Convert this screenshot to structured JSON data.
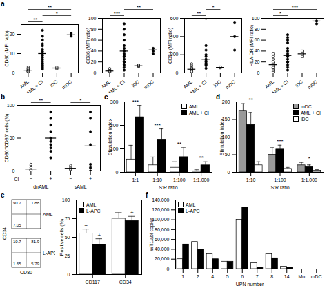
{
  "chart_data": [
    {
      "panel": "a",
      "type": "dot",
      "y_label": "CD80 (MFI ratio)",
      "categories": [
        "AML",
        "AML + CI",
        "iDC",
        "mDC"
      ],
      "marker": [
        "circle-open",
        "circle",
        "square-open",
        "circle"
      ],
      "points": [
        [
          0.5,
          1,
          1.5,
          2,
          0.8,
          1.2,
          2.5,
          3,
          1,
          0.6,
          1.8,
          2.2,
          0.7,
          1.4
        ],
        [
          2,
          3,
          4,
          5,
          6,
          7,
          8,
          9,
          10,
          11,
          12,
          14,
          15,
          17,
          19,
          22
        ],
        [
          2,
          2.5,
          3
        ],
        [
          19,
          19.5,
          20.5
        ]
      ],
      "means": [
        1.4,
        10,
        2.5,
        19.7
      ],
      "ylim": [
        0,
        25
      ],
      "yticks": [
        0,
        10,
        20
      ],
      "significance": [
        {
          "between": [
            "AML",
            "AML + CI"
          ],
          "text": "**"
        },
        {
          "between": [
            "AML + CI",
            "mDC"
          ],
          "text": "*"
        },
        {
          "between": [
            "AML",
            "mDC"
          ],
          "text": "**"
        }
      ]
    },
    {
      "type": "dot",
      "y_label": "CD86 (MFI ratio)",
      "categories": [
        "AML",
        "AML + CI",
        "iDC",
        "mDC"
      ],
      "marker": [
        "circle-open",
        "circle",
        "square-open",
        "circle"
      ],
      "points": [
        [
          1,
          2,
          3,
          4,
          5,
          3,
          2,
          6,
          8,
          4,
          2,
          1,
          3
        ],
        [
          5,
          10,
          15,
          20,
          25,
          30,
          35,
          40,
          45,
          50,
          60,
          70,
          80,
          90,
          20,
          30
        ],
        [
          12,
          13,
          14
        ],
        [
          35,
          45,
          40
        ]
      ],
      "means": [
        3.5,
        40,
        13,
        42
      ],
      "ylim": [
        0,
        100
      ],
      "yticks": [
        0,
        20,
        40,
        60,
        80,
        100
      ],
      "significance": [
        {
          "between": [
            "AML",
            "AML + CI"
          ],
          "text": "***"
        },
        {
          "between": [
            "AML + CI",
            "mDC"
          ],
          "text": "**"
        }
      ]
    },
    {
      "type": "dot",
      "y_label": "CD54 (MFI ratio)",
      "categories": [
        "AML",
        "AML + CI",
        "iDC",
        "mDC"
      ],
      "marker": [
        "circle-open",
        "circle",
        "square-open",
        "circle"
      ],
      "points": [
        [
          10,
          20,
          30,
          40,
          50,
          60,
          80,
          100,
          20,
          30,
          15,
          50
        ],
        [
          50,
          80,
          100,
          120,
          150,
          180,
          200,
          250,
          300,
          600,
          100,
          90,
          130
        ],
        [
          55,
          60,
          65
        ],
        [
          250,
          400,
          550
        ]
      ],
      "means": [
        40,
        150,
        60,
        400
      ],
      "ylim": [
        0,
        600
      ],
      "yticks": [
        0,
        200,
        400,
        600
      ],
      "significance": [
        {
          "between": [
            "AML",
            "AML + CI"
          ],
          "text": "**"
        },
        {
          "between": [
            "AML + CI",
            "iDC"
          ],
          "text": "*"
        }
      ]
    },
    {
      "type": "dot",
      "y_label": "HLA-DR (MFI ratio)",
      "categories": [
        "AML",
        "AML + CI",
        "iDC",
        "mDC"
      ],
      "marker": [
        "circle-open",
        "circle",
        "square-open",
        "circle"
      ],
      "points": [
        [
          2,
          5,
          8,
          10,
          12,
          15,
          18,
          20,
          25,
          30,
          35,
          5,
          10
        ],
        [
          5,
          10,
          15,
          20,
          25,
          30,
          35,
          40,
          45,
          55,
          60,
          65,
          70,
          30,
          20
        ],
        [
          30,
          35,
          40
        ],
        [
          90,
          95,
          100
        ]
      ],
      "means": [
        15,
        32,
        35,
        95
      ],
      "ylim": [
        0,
        100
      ],
      "yticks": [
        0,
        20,
        40,
        60,
        80,
        100
      ],
      "significance": [
        {
          "between": [
            "AML",
            "AML + CI"
          ],
          "text": "*"
        },
        {
          "between": [
            "AML",
            "mDC"
          ],
          "text": "***"
        }
      ]
    },
    {
      "panel": "b",
      "type": "dot",
      "y_label": "CD80⁺/CD86⁺ cells (%)",
      "x_label": "CI",
      "categories": [
        "−",
        "+",
        "−",
        "+"
      ],
      "groups": [
        "dnAML",
        "sAML"
      ],
      "marker": [
        "circle-open",
        "circle",
        "circle-open",
        "circle"
      ],
      "points": [
        [
          0,
          1,
          2,
          3,
          5,
          8,
          10,
          2,
          0,
          1
        ],
        [
          20,
          30,
          40,
          50,
          60,
          70,
          80,
          90,
          45,
          35
        ],
        [
          0,
          2,
          4,
          6,
          8,
          3
        ],
        [
          5,
          10,
          40,
          60,
          80,
          90,
          0
        ]
      ],
      "means": [
        3,
        50,
        4,
        38
      ],
      "ylim": [
        0,
        100
      ],
      "yticks": [
        0,
        50,
        100
      ],
      "significance": [
        "**",
        "*"
      ]
    },
    {
      "panel": "c",
      "type": "bar",
      "y_label": "Stimulation index",
      "x_label": "S:R ratio",
      "categories": [
        "1:1",
        "1:10",
        "1:100",
        "1:1,000"
      ],
      "series": [
        {
          "name": "AML",
          "color": "#ffffff",
          "values": [
            55,
            30,
            20,
            5
          ],
          "errors": [
            60,
            35,
            25,
            6
          ]
        },
        {
          "name": "AML + CI",
          "color": "#000000",
          "values": [
            235,
            140,
            65,
            30
          ],
          "errors": [
            50,
            45,
            40,
            15
          ]
        }
      ],
      "ylim": [
        0,
        300
      ],
      "yticks": [
        0,
        100,
        200,
        300
      ],
      "significance": [
        "***",
        "***",
        "**",
        "**"
      ],
      "legend": "top-right"
    },
    {
      "panel": "d",
      "type": "bar",
      "y_label": "Stimulation index",
      "x_label": "S:R ratio",
      "categories": [
        "1:10",
        "1:100",
        "1:1,000"
      ],
      "series": [
        {
          "name": "mDC",
          "color": "#999999",
          "values": [
            175,
            50,
            20
          ],
          "errors": [
            20,
            20,
            8
          ]
        },
        {
          "name": "AML + CI",
          "color": "#000000",
          "values": [
            135,
            65,
            15
          ],
          "errors": [
            35,
            12,
            6
          ]
        },
        {
          "name": "iDC",
          "color": "#ffffff",
          "values": [
            20,
            10,
            5
          ],
          "errors": [
            10,
            4,
            3
          ]
        }
      ],
      "ylim": [
        0,
        200
      ],
      "yticks": [
        0,
        50,
        100,
        150,
        200
      ],
      "significance": [
        "**",
        "***",
        "*"
      ],
      "legend": "top-right"
    },
    {
      "panel": "e",
      "type": "flow",
      "x_label": "CD80",
      "y_label": "CD34",
      "plots": [
        {
          "name": "AML",
          "top_left": 90.7,
          "top_right": 1.88,
          "bottom_left": 7.05
        },
        {
          "name": "L-APC",
          "top_left": 10.7,
          "top_right": 81.9,
          "bottom_left": 1.65,
          "bottom_right": 5.79
        }
      ]
    },
    {
      "type": "bar",
      "y_label": "Positive cells (%)",
      "categories": [
        "CD117",
        "CD34"
      ],
      "series": [
        {
          "name": "AML",
          "color": "#ffffff",
          "values": [
            55,
            75
          ],
          "errors": [
            6,
            8
          ],
          "annotation": "−"
        },
        {
          "name": "L-APC",
          "color": "#000000",
          "values": [
            40,
            72
          ],
          "errors": [
            8,
            6
          ],
          "annotation": "+"
        }
      ],
      "ylim": [
        0,
        100
      ],
      "yticks": [
        0,
        25,
        50,
        75,
        100
      ],
      "legend": "top-left"
    },
    {
      "panel": "f",
      "type": "bar",
      "y_label": "WT1/abl copies",
      "x_label": "UPN number",
      "categories": [
        "1",
        "2",
        "4",
        "5",
        "6",
        "7",
        "8",
        "14",
        "Mo",
        "mDC"
      ],
      "series": [
        {
          "name": "AML",
          "color": "#ffffff",
          "values": [
            20000,
            55000,
            30000,
            15000,
            100000,
            12000,
            30000,
            5000,
            0,
            0
          ]
        },
        {
          "name": "L-APC",
          "color": "#000000",
          "values": [
            50000,
            40000,
            20000,
            15000,
            125000,
            3000,
            22000,
            3000,
            0,
            0
          ]
        }
      ],
      "ylim": [
        0,
        140000
      ],
      "yticks": [
        0,
        {
          "value": 20000,
          "label": "20,000"
        },
        {
          "value": 40000,
          "label": "40,000"
        },
        {
          "value": 60000,
          "label": "60,000"
        },
        {
          "value": 80000,
          "label": "80,000"
        },
        {
          "value": 100000,
          "label": "100,000"
        },
        {
          "value": 120000,
          "label": "120,000"
        },
        {
          "value": 140000,
          "label": "140,000"
        }
      ],
      "legend": "top-left"
    }
  ]
}
